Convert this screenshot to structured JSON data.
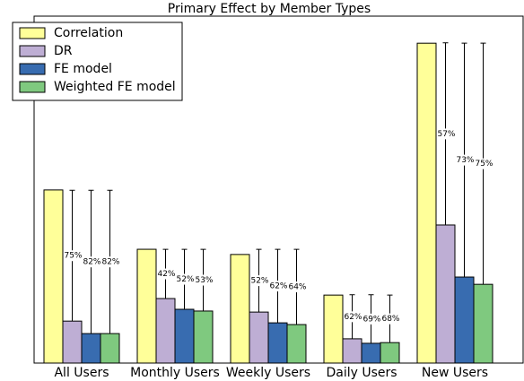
{
  "chart_data": {
    "type": "bar",
    "title": "Primary Effect by Member Types",
    "categories": [
      "All Users",
      "Monthly Users",
      "Weekly Users",
      "Daily Users",
      "New Users"
    ],
    "ylim": [
      0,
      100
    ],
    "legend": "upper left",
    "series": [
      {
        "name": "Correlation",
        "color": "#ffff99",
        "values": [
          49.9,
          32.8,
          31.3,
          19.6,
          92.2
        ]
      },
      {
        "name": "DR",
        "color": "#beaed4",
        "values": [
          12.1,
          18.6,
          14.7,
          7.0,
          39.8
        ],
        "errors": [
          37.7,
          14.2,
          18.1,
          12.7,
          52.5
        ],
        "labels": [
          "75%",
          "42%",
          "52%",
          "62%",
          "57%"
        ]
      },
      {
        "name": "FE model",
        "color": "#386cb0",
        "values": [
          8.5,
          15.5,
          11.6,
          5.7,
          24.8
        ],
        "errors": [
          41.3,
          17.3,
          21.2,
          14.0,
          67.4
        ],
        "labels": [
          "82%",
          "52%",
          "62%",
          "69%",
          "73%"
        ]
      },
      {
        "name": "Weighted FE model",
        "color": "#7fc97f",
        "values": [
          8.5,
          15.0,
          11.1,
          5.9,
          22.7
        ],
        "errors": [
          41.3,
          17.8,
          21.7,
          13.7,
          69.5
        ],
        "labels": [
          "82%",
          "53%",
          "64%",
          "68%",
          "75%"
        ]
      }
    ]
  }
}
